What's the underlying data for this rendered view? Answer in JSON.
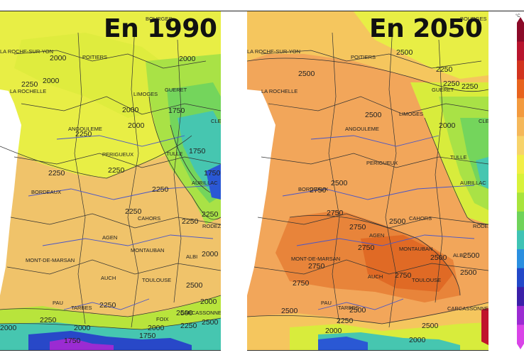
{
  "maps": [
    {
      "title": "En 1990",
      "cities": [
        "BOURGES",
        "LA ROCHE-SUR-YON",
        "POITIERS",
        "LA ROCHELLE",
        "GUERET",
        "LIMOGES",
        "ANGOULEME",
        "TULLE",
        "PERIGUEUX",
        "BORDEAUX",
        "AURILLAC",
        "CAHORS",
        "RODEZ",
        "AGEN",
        "MONT-DE-MARSAN",
        "MONTAUBAN",
        "ALBI",
        "AUCH",
        "TOULOUSE",
        "PAU",
        "TARBES",
        "FOIX",
        "CARCASSONNE",
        "CLERMONT"
      ],
      "contour_labels": [
        "2000",
        "2000",
        "2000",
        "2250",
        "2250",
        "2000",
        "1750",
        "2250",
        "2000",
        "1750",
        "2250",
        "2250",
        "1750",
        "2250",
        "2250",
        "2000",
        "2500",
        "2000",
        "2250",
        "2500",
        "2250",
        "1750",
        "2000",
        "2000",
        "2250",
        "2500",
        "1750",
        "2000",
        "2250"
      ]
    },
    {
      "title": "En 2050",
      "cities": [
        "BOURGES",
        "LA ROCHE-SUR-YON",
        "POITIERS",
        "LA ROCHELLE",
        "GUERET",
        "LIMOGES",
        "ANGOULEME",
        "TULLE",
        "PERIGUEUX",
        "BORDEAUX",
        "AURILLAC",
        "CAHORS",
        "RODEZ",
        "AGEN",
        "MONT-DE-MARSAN",
        "MONTAUBAN",
        "ALBI",
        "AUCH",
        "TOULOUSE",
        "PAU",
        "TARBES",
        "CARCASSONNE",
        "CLERMONT"
      ],
      "contour_labels": [
        "2500",
        "2250",
        "2250",
        "2500",
        "2500",
        "2000",
        "2250",
        "2500",
        "2750",
        "2750",
        "2500",
        "2750",
        "2750",
        "2750",
        "2500",
        "2750",
        "2750",
        "2500",
        "2500",
        "2500",
        "2500",
        "2250",
        "2000",
        "2500",
        "2000"
      ]
    }
  ],
  "legend": {
    "unit": "°C",
    "colors": [
      "#8b0a28",
      "#b8142d",
      "#d2331e",
      "#e8631d",
      "#f39a3e",
      "#f5b85a",
      "#f7d36a",
      "#f2ee46",
      "#d8f23a",
      "#a8e43c",
      "#6fd35a",
      "#3fc3b4",
      "#2a8fe0",
      "#2248c8",
      "#3a1fa8",
      "#9b2bd2",
      "#d944e8"
    ]
  }
}
